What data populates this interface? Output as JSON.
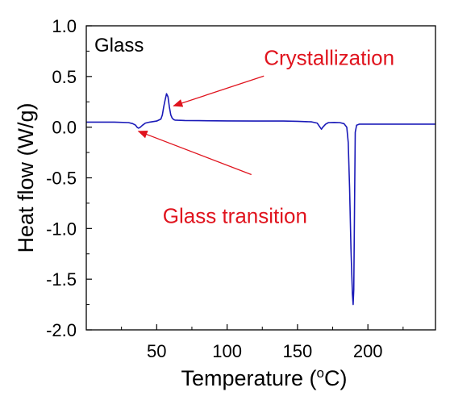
{
  "chart_data": {
    "type": "line",
    "xlabel": "Temperature (°C)",
    "xlabel_parts": {
      "pre": "Temperature (",
      "sup": "o",
      "post": "C)"
    },
    "ylabel": "Heat flow (W/g)",
    "xlim": [
      0,
      248
    ],
    "ylim": [
      -2.0,
      1.0
    ],
    "x_ticks": [
      50,
      100,
      150,
      200
    ],
    "x_tick_labels": [
      "50",
      "100",
      "150",
      "200"
    ],
    "y_ticks": [
      1.0,
      0.5,
      0.0,
      -0.5,
      -1.0,
      -1.5,
      -2.0
    ],
    "y_tick_labels": [
      "1.0",
      "0.5",
      "0.0",
      "-0.5",
      "-1.0",
      "-1.5",
      "-2.0"
    ],
    "grid": false,
    "inset_label": "Glass",
    "line_color": "#1a1ab8",
    "annotation_color": "#e0141e",
    "series": [
      {
        "x": [
          0,
          20,
          30,
          33,
          35,
          36,
          37,
          38,
          40,
          42,
          45,
          50,
          53,
          54,
          55,
          56,
          57,
          58,
          59,
          60,
          61,
          62,
          63,
          65,
          70,
          80,
          100,
          120,
          140,
          150,
          160,
          164,
          166,
          167,
          168,
          170,
          172,
          176,
          180,
          183,
          185,
          186,
          187,
          188,
          189,
          189.5,
          190,
          190.5,
          191,
          192,
          194,
          200,
          220,
          248
        ],
        "y": [
          0.05,
          0.05,
          0.045,
          0.035,
          0.02,
          0.0,
          -0.01,
          -0.005,
          0.02,
          0.04,
          0.05,
          0.06,
          0.08,
          0.12,
          0.2,
          0.27,
          0.33,
          0.3,
          0.2,
          0.12,
          0.09,
          0.075,
          0.07,
          0.068,
          0.066,
          0.064,
          0.062,
          0.06,
          0.06,
          0.058,
          0.052,
          0.04,
          0.0,
          -0.02,
          0.0,
          0.03,
          0.045,
          0.047,
          0.045,
          0.035,
          0.0,
          -0.15,
          -0.6,
          -1.2,
          -1.65,
          -1.75,
          -1.6,
          -0.8,
          -0.05,
          0.02,
          0.03,
          0.03,
          0.03,
          0.03
        ]
      }
    ],
    "annotations": [
      {
        "text": "Crystallization",
        "arrow_to": [
          62,
          0.21
        ],
        "label_anchor": [
          125,
          0.6
        ]
      },
      {
        "text": "Glass transition",
        "arrow_to": [
          37,
          -0.04
        ],
        "label_anchor": [
          60,
          -0.5
        ]
      }
    ]
  }
}
